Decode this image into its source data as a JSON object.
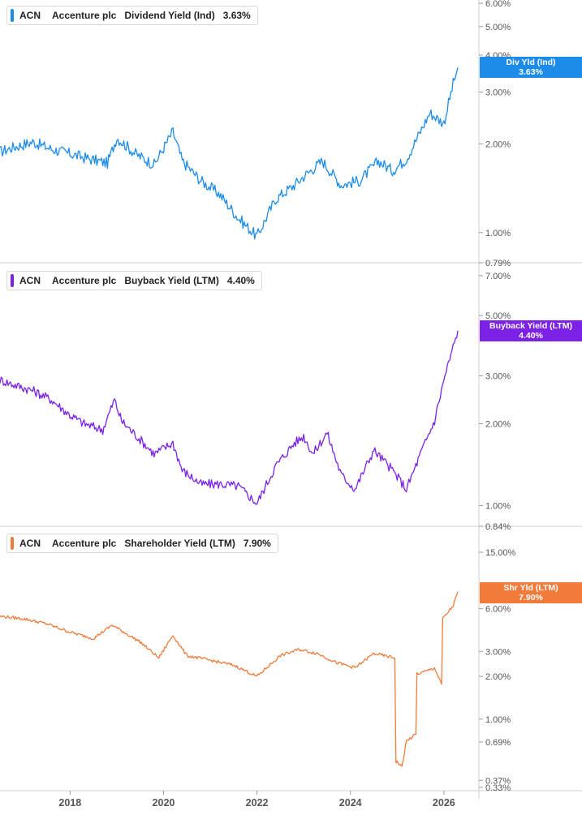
{
  "chart_data": [
    {
      "type": "line",
      "ticker": "ACN",
      "company": "Accenture plc",
      "metric": "Dividend Yield (Ind)",
      "current_value": "3.63%",
      "badge_label": "Div Yld (Ind)",
      "badge_value": "3.63%",
      "color": "#1c8ce8",
      "y_scale": "log",
      "ylim": [
        0.79,
        6.0
      ],
      "yticks": [
        {
          "value": 6.0,
          "label": "6.00%"
        },
        {
          "value": 5.0,
          "label": "5.00%"
        },
        {
          "value": 4.0,
          "label": "4.00%"
        },
        {
          "value": 3.0,
          "label": "3.00%"
        },
        {
          "value": 2.0,
          "label": "2.00%"
        },
        {
          "value": 1.0,
          "label": "1.00%"
        },
        {
          "value": 0.79,
          "label": "0.79%"
        }
      ],
      "x": [
        2016.5,
        2016.8,
        2017.2,
        2017.6,
        2018.0,
        2018.4,
        2018.8,
        2019.0,
        2019.4,
        2019.8,
        2020.2,
        2020.4,
        2020.8,
        2021.2,
        2021.6,
        2022.0,
        2022.4,
        2022.8,
        2023.0,
        2023.4,
        2023.8,
        2024.2,
        2024.6,
        2024.9,
        2025.2,
        2025.4,
        2025.7,
        2026.0,
        2026.2,
        2026.3
      ],
      "values": [
        1.88,
        1.95,
        2.03,
        1.92,
        1.85,
        1.78,
        1.72,
        2.1,
        1.85,
        1.7,
        2.2,
        1.75,
        1.5,
        1.35,
        1.12,
        0.97,
        1.3,
        1.45,
        1.55,
        1.75,
        1.45,
        1.5,
        1.75,
        1.62,
        1.78,
        2.05,
        2.55,
        2.35,
        3.2,
        3.63
      ]
    },
    {
      "type": "line",
      "ticker": "ACN",
      "company": "Accenture plc",
      "metric": "Buyback Yield (LTM)",
      "current_value": "4.40%",
      "badge_label": "Buyback Yield (LTM)",
      "badge_value": "4.40%",
      "color": "#7b22e6",
      "y_scale": "log",
      "ylim": [
        0.84,
        7.0
      ],
      "yticks": [
        {
          "value": 7.0,
          "label": "7.00%"
        },
        {
          "value": 5.0,
          "label": "5.00%"
        },
        {
          "value": 3.0,
          "label": "3.00%"
        },
        {
          "value": 2.0,
          "label": "2.00%"
        },
        {
          "value": 1.0,
          "label": "1.00%"
        },
        {
          "value": 0.84,
          "label": "0.84%"
        }
      ],
      "x": [
        2016.5,
        2016.8,
        2017.2,
        2017.6,
        2018.0,
        2018.3,
        2018.7,
        2018.95,
        2019.1,
        2019.5,
        2019.8,
        2020.2,
        2020.4,
        2020.8,
        2021.2,
        2021.6,
        2022.0,
        2022.4,
        2022.8,
        2023.0,
        2023.2,
        2023.5,
        2023.8,
        2024.1,
        2024.5,
        2024.9,
        2025.2,
        2025.5,
        2025.8,
        2026.0,
        2026.3
      ],
      "values": [
        2.9,
        2.78,
        2.65,
        2.45,
        2.15,
        2.0,
        1.9,
        2.45,
        2.05,
        1.75,
        1.55,
        1.7,
        1.35,
        1.2,
        1.2,
        1.18,
        1.02,
        1.4,
        1.7,
        1.8,
        1.55,
        1.85,
        1.3,
        1.15,
        1.6,
        1.35,
        1.15,
        1.55,
        2.05,
        2.9,
        4.4
      ]
    },
    {
      "type": "line",
      "ticker": "ACN",
      "company": "Accenture plc",
      "metric": "Shareholder Yield (LTM)",
      "current_value": "7.90%",
      "badge_label": "Shr Yld (LTM)",
      "badge_value": "7.90%",
      "color": "#f07b3a",
      "y_scale": "log",
      "ylim": [
        0.33,
        15.0
      ],
      "yticks": [
        {
          "value": 15.0,
          "label": "15.00%"
        },
        {
          "value": 6.0,
          "label": "6.00%"
        },
        {
          "value": 3.0,
          "label": "3.00%"
        },
        {
          "value": 2.0,
          "label": "2.00%"
        },
        {
          "value": 1.0,
          "label": "1.00%"
        },
        {
          "value": 0.69,
          "label": "0.69%"
        },
        {
          "value": 0.37,
          "label": "0.37%"
        },
        {
          "value": 0.33,
          "label": "0.33%"
        }
      ],
      "x": [
        2016.5,
        2017.0,
        2017.5,
        2018.0,
        2018.5,
        2018.9,
        2019.5,
        2019.9,
        2020.2,
        2020.5,
        2021.0,
        2021.5,
        2022.0,
        2022.5,
        2022.9,
        2023.3,
        2023.7,
        2024.1,
        2024.5,
        2024.95,
        2025.0,
        2025.1,
        2025.2,
        2025.4,
        2025.5,
        2025.8,
        2025.95,
        2026.0,
        2026.2,
        2026.3
      ],
      "values": [
        5.3,
        5.1,
        4.7,
        4.1,
        3.7,
        4.6,
        3.5,
        2.7,
        3.9,
        2.8,
        2.6,
        2.4,
        2.0,
        2.8,
        3.1,
        2.9,
        2.5,
        2.3,
        2.9,
        2.7,
        0.5,
        0.46,
        0.7,
        0.78,
        2.1,
        2.3,
        1.75,
        5.2,
        6.3,
        7.9
      ]
    }
  ],
  "x_axis": {
    "range": [
      2016.5,
      2026.75
    ],
    "ticks": [
      {
        "value": 2018,
        "label": "2018"
      },
      {
        "value": 2020,
        "label": "2020"
      },
      {
        "value": 2022,
        "label": "2022"
      },
      {
        "value": 2024,
        "label": "2024"
      },
      {
        "value": 2026,
        "label": "2026"
      }
    ]
  }
}
